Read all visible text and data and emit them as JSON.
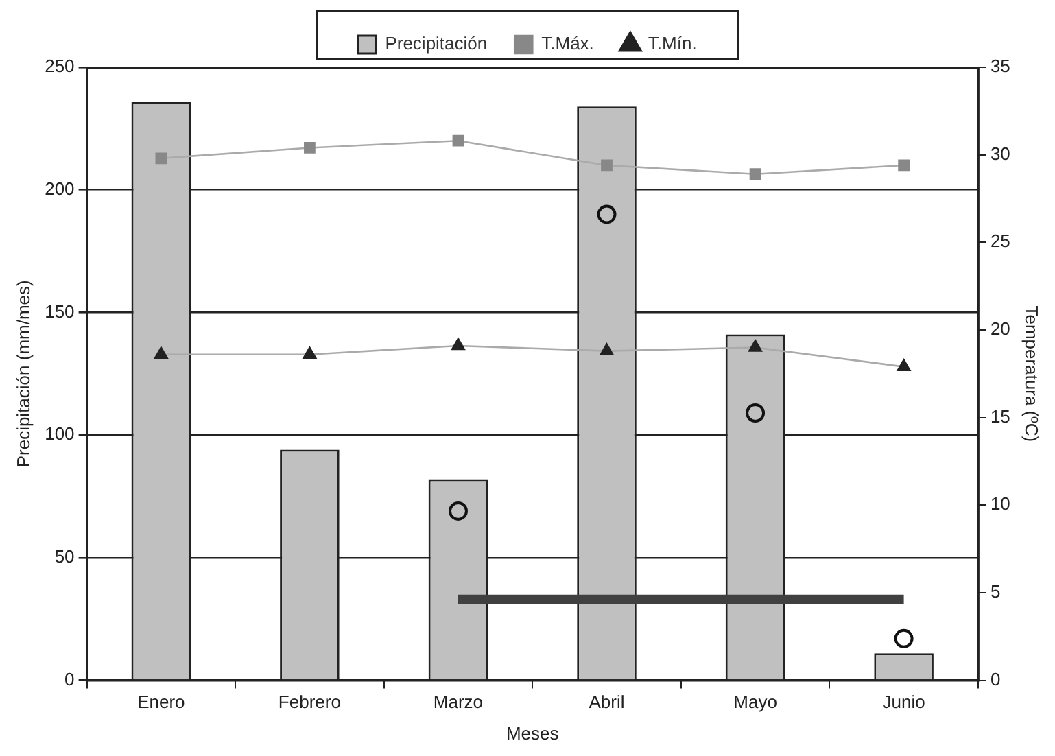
{
  "chart_data": {
    "type": "bar",
    "xlabel": "Meses",
    "ylabel": "Precipitación (mm/mes)",
    "y2label": "Temperatura (ºC)",
    "categories": [
      "Enero",
      "Febrero",
      "Marzo",
      "Abril",
      "Mayo",
      "Junio"
    ],
    "series": [
      {
        "name": "Precipitación",
        "color": "#c0c0c0",
        "values": [
          236,
          94,
          82,
          234,
          141,
          11
        ]
      },
      {
        "name": "T.Máx.",
        "type": "line",
        "axis": "y2",
        "color": "#888888",
        "marker": "square",
        "values": [
          29.8,
          30.4,
          30.8,
          29.4,
          28.9,
          29.4
        ]
      },
      {
        "name": "T.Mín.",
        "type": "line",
        "axis": "y2",
        "color": "#222222",
        "marker": "triangle",
        "values": [
          18.6,
          18.6,
          19.1,
          18.8,
          19.0,
          17.9
        ]
      },
      {
        "type": "line",
        "color": "#404040",
        "marker": "none",
        "values": [
          null,
          null,
          33,
          33,
          33,
          33
        ]
      },
      {
        "type": "scatter",
        "color": "#111111",
        "marker": "circle",
        "x": [
          "Marzo",
          "Abril",
          "Mayo",
          "Junio"
        ],
        "values": [
          69,
          190,
          109,
          17
        ]
      }
    ],
    "ylim": [
      0,
      250
    ],
    "yticks": [
      0,
      50,
      100,
      150,
      200,
      250
    ],
    "y2lim": [
      0,
      35
    ],
    "y2ticks": [
      0,
      5,
      10,
      15,
      20,
      25,
      30,
      35
    ],
    "grid": "y",
    "legend": "top"
  }
}
